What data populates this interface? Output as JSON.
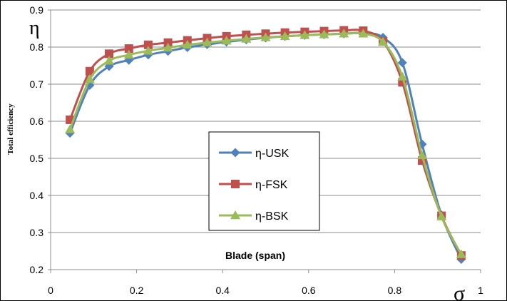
{
  "chart_data": {
    "type": "line",
    "title": "",
    "xlabel": "Blade (span)",
    "ylabel": "Total efficiency",
    "y_symbol": "η",
    "x_symbol": "σ",
    "xlim": [
      0,
      1
    ],
    "ylim": [
      0.2,
      0.9
    ],
    "x_ticks": [
      "0",
      "0.2",
      "0.4",
      "0.6",
      "0.8",
      "1"
    ],
    "y_ticks": [
      "0.2",
      "0.3",
      "0.4",
      "0.5",
      "0.6",
      "0.7",
      "0.8",
      "0.9"
    ],
    "grid": "horizontal",
    "legend_position": "center-bottom",
    "series": [
      {
        "name": "η-USK",
        "color": "#4F81BD",
        "marker": "diamond",
        "x": [
          0.045,
          0.091,
          0.136,
          0.182,
          0.227,
          0.273,
          0.318,
          0.364,
          0.409,
          0.455,
          0.5,
          0.545,
          0.591,
          0.636,
          0.682,
          0.727,
          0.773,
          0.818,
          0.864,
          0.909,
          0.955
        ],
        "y": [
          0.568,
          0.697,
          0.748,
          0.765,
          0.779,
          0.789,
          0.799,
          0.807,
          0.814,
          0.82,
          0.825,
          0.829,
          0.832,
          0.834,
          0.836,
          0.838,
          0.826,
          0.758,
          0.538,
          0.347,
          0.228
        ]
      },
      {
        "name": "η-FSK",
        "color": "#C0504D",
        "marker": "square",
        "x": [
          0.045,
          0.091,
          0.136,
          0.182,
          0.227,
          0.273,
          0.318,
          0.364,
          0.409,
          0.455,
          0.5,
          0.545,
          0.591,
          0.636,
          0.682,
          0.727,
          0.773,
          0.818,
          0.864,
          0.909,
          0.955
        ],
        "y": [
          0.604,
          0.735,
          0.782,
          0.796,
          0.806,
          0.812,
          0.818,
          0.824,
          0.829,
          0.833,
          0.836,
          0.839,
          0.841,
          0.843,
          0.845,
          0.844,
          0.815,
          0.705,
          0.494,
          0.345,
          0.238
        ]
      },
      {
        "name": "η-BSK",
        "color": "#9BBB59",
        "marker": "triangle",
        "x": [
          0.045,
          0.091,
          0.136,
          0.182,
          0.227,
          0.273,
          0.318,
          0.364,
          0.409,
          0.455,
          0.5,
          0.545,
          0.591,
          0.636,
          0.682,
          0.727,
          0.773,
          0.818,
          0.864,
          0.909,
          0.955
        ],
        "y": [
          0.578,
          0.713,
          0.763,
          0.779,
          0.79,
          0.798,
          0.806,
          0.812,
          0.817,
          0.822,
          0.826,
          0.829,
          0.832,
          0.834,
          0.836,
          0.836,
          0.814,
          0.72,
          0.508,
          0.343,
          0.241
        ]
      }
    ]
  }
}
